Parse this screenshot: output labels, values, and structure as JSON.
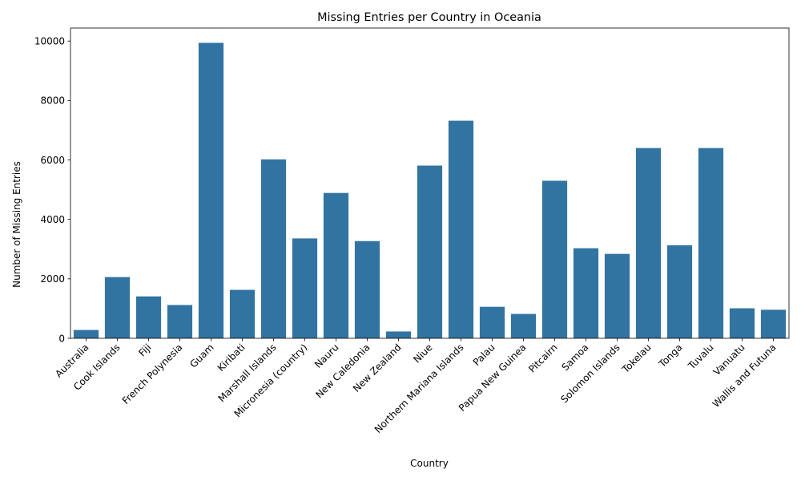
{
  "chart_data": {
    "type": "bar",
    "title": "Missing Entries per Country in Oceania",
    "xlabel": "Country",
    "ylabel": "Number of Missing Entries",
    "categories": [
      "Australia",
      "Cook Islands",
      "Fiji",
      "French Polynesia",
      "Guam",
      "Kiribati",
      "Marshall Islands",
      "Micronesia (country)",
      "Nauru",
      "New Caledonia",
      "New Zealand",
      "Niue",
      "Northern Mariana Islands",
      "Palau",
      "Papua New Guinea",
      "Pitcairn",
      "Samoa",
      "Solomon Islands",
      "Tokelau",
      "Tonga",
      "Tuvalu",
      "Vanuatu",
      "Wallis and Futuna"
    ],
    "values": [
      280,
      2060,
      1410,
      1120,
      9940,
      1630,
      6020,
      3360,
      4890,
      3270,
      230,
      5810,
      7320,
      1060,
      820,
      5300,
      3030,
      2840,
      6400,
      3130,
      6400,
      1010,
      960
    ],
    "yticks": [
      0,
      2000,
      4000,
      6000,
      8000,
      10000
    ],
    "ylim": [
      0,
      10437
    ],
    "grid": false,
    "bar_color": "#3274a1"
  }
}
